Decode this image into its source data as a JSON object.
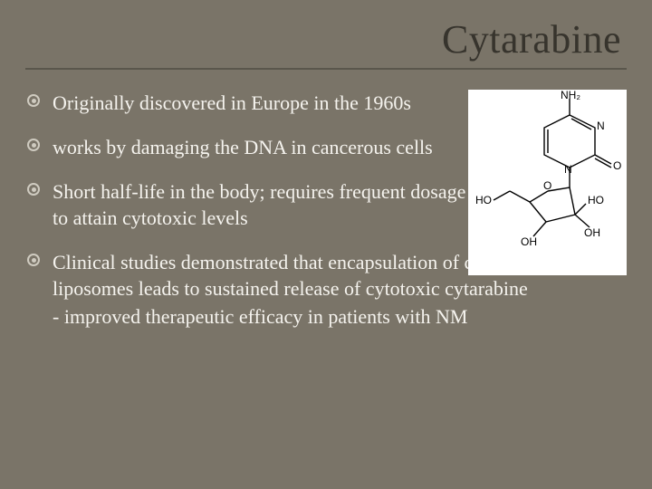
{
  "slide": {
    "title": "Cytarabine",
    "background_color": "#7a7468",
    "title_color": "#37342d",
    "underline_color": "#5a564c",
    "text_color": "#f5f3ee",
    "bullet_ring_color": "#cfcbc0",
    "bullet_dot_color": "#cfcbc0",
    "title_fontsize": 44,
    "body_fontsize": 22,
    "bullets": [
      {
        "text": "Originally discovered in Europe in the 1960s",
        "constrained": true
      },
      {
        "text": "works by damaging the DNA in cancerous cells",
        "constrained": true
      },
      {
        "text": "Short half-life in the body; requires frequent dosage to attain cytotoxic levels",
        "constrained": true
      },
      {
        "text": "Clinical studies demonstrated that encapsulation of cytarabine into liposomes leads to sustained release of cytotoxic cytarabine",
        "subline": "- improved therapeutic efficacy in patients with NM",
        "constrained": false
      }
    ],
    "molecule": {
      "background": "#ffffff",
      "line_color": "#000000",
      "label_color": "#000000",
      "labels": {
        "nh2": "NH₂",
        "n": "N",
        "o_carbonyl": "O",
        "ho": "HO",
        "o_ring": "O",
        "oh": "OH"
      }
    }
  }
}
